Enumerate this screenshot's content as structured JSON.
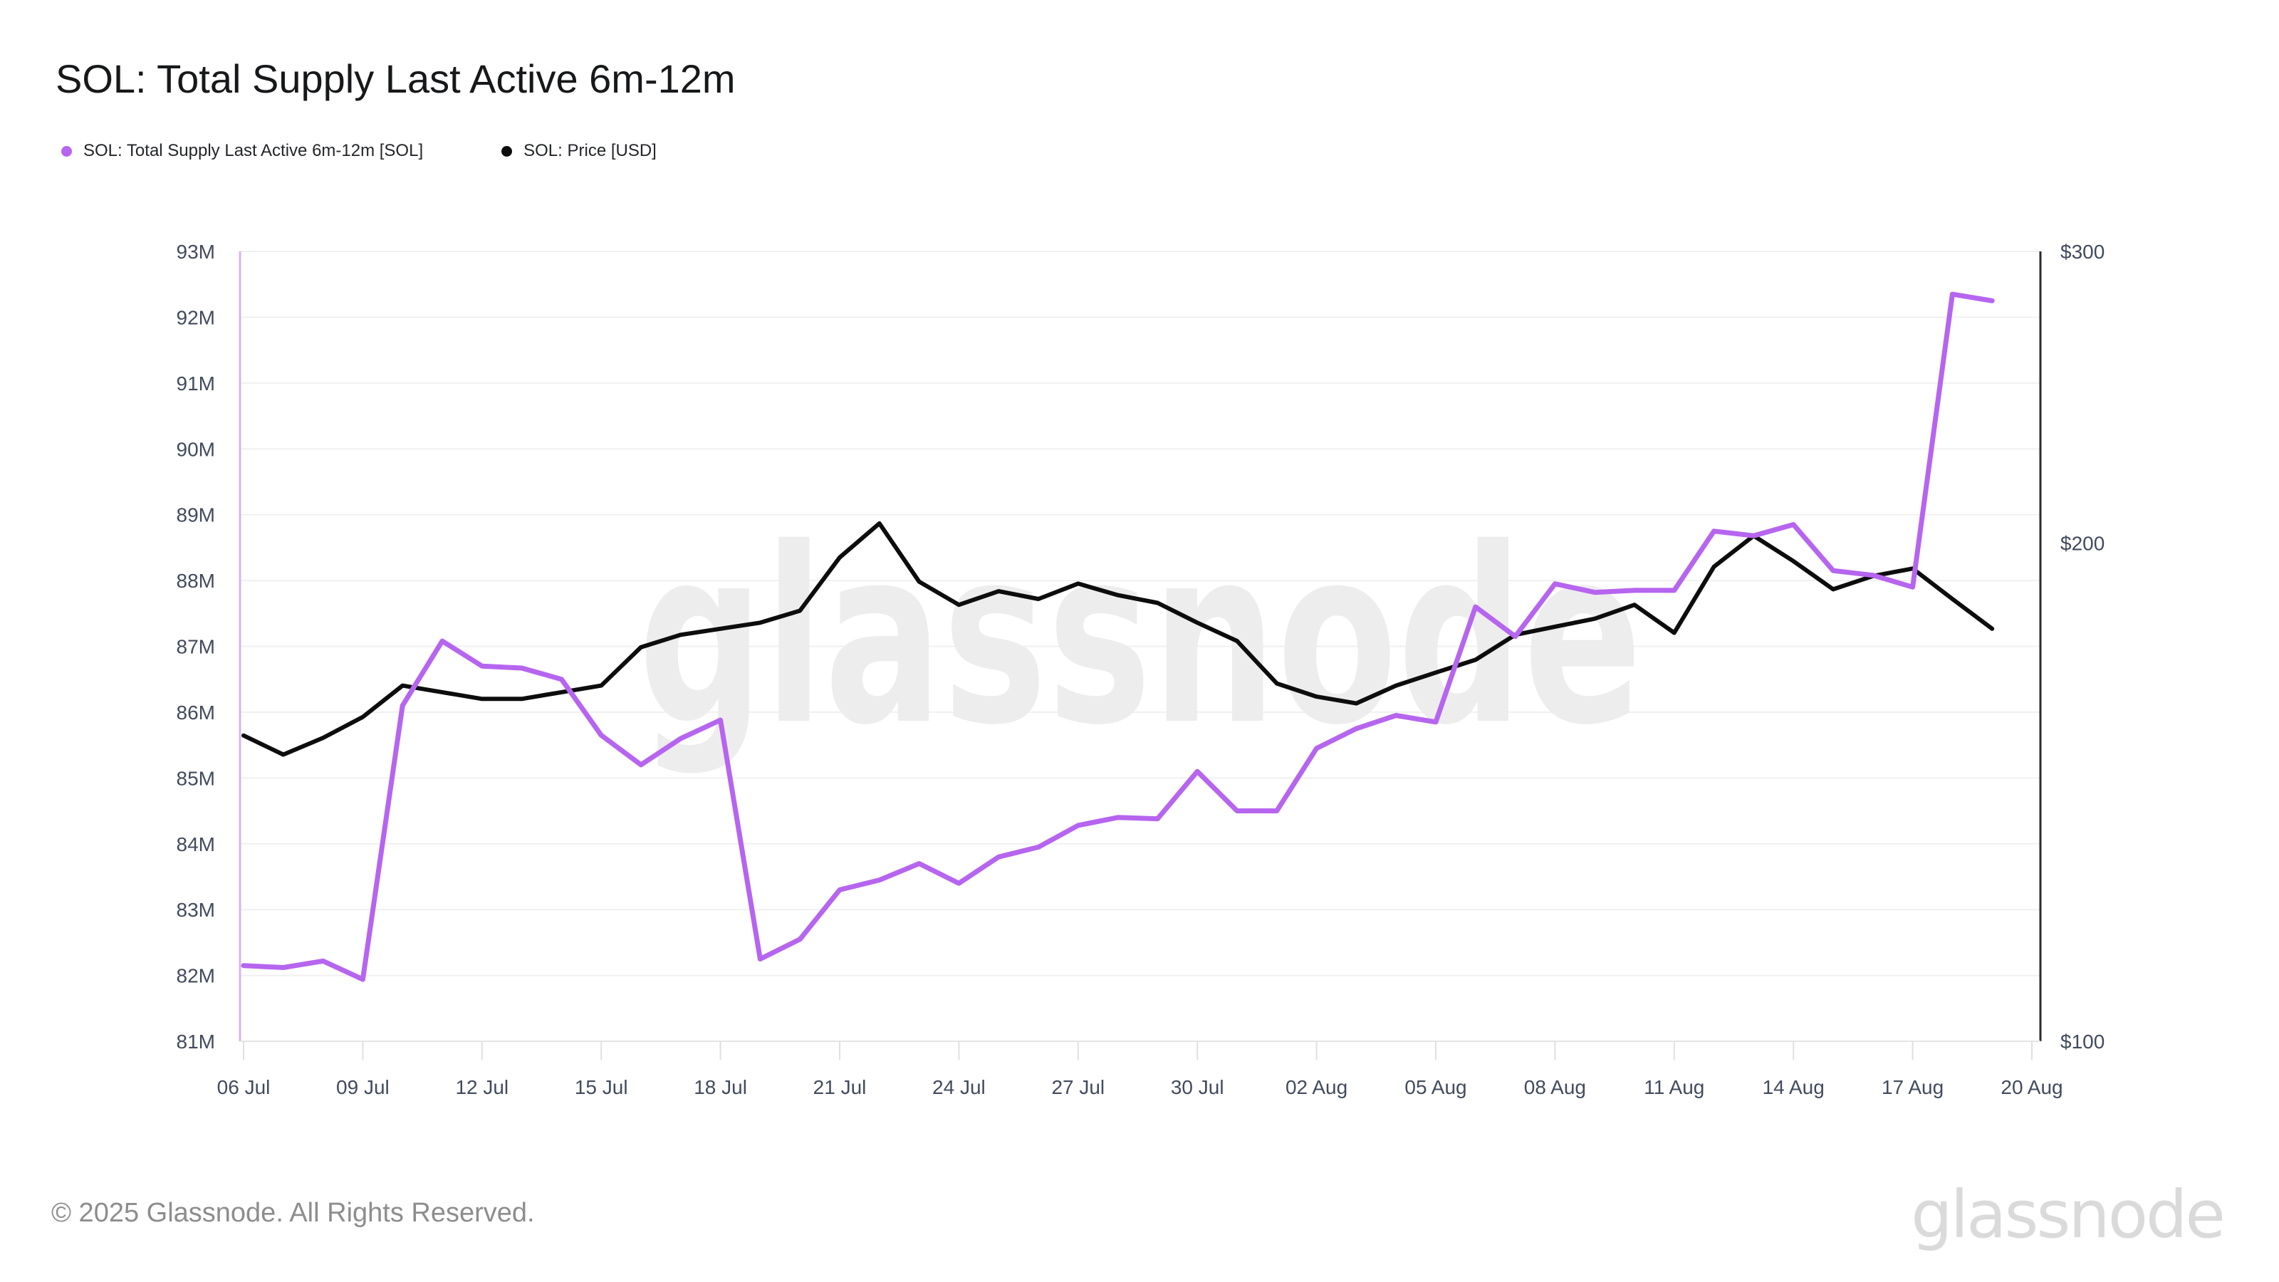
{
  "header": {
    "title": "SOL: Total Supply Last Active 6m-12m"
  },
  "legend": [
    {
      "label": "SOL: Total Supply Last Active 6m-12m [SOL]",
      "color": "#b665ef"
    },
    {
      "label": "SOL: Price [USD]",
      "color": "#0d0d0d"
    }
  ],
  "watermark": "glassnode",
  "footer": {
    "copyright": "© 2025 Glassnode. All Rights Reserved.",
    "brand": "glassnode"
  },
  "colors": {
    "supply_line": "#b665ef",
    "price_line": "#0d0d0d",
    "left_axis_line": "#d9b3f2",
    "right_axis_line": "#2b2b2b",
    "bottom_axis_line": "#e4e4e4",
    "gridline": "#f0f0f0",
    "tick": "#e0e0e0",
    "axis_text": "#414b5c",
    "watermark": "#ededed"
  },
  "chart_data": {
    "type": "line",
    "title": "SOL: Total Supply Last Active 6m-12m",
    "grid": "horizontal",
    "legend_position": "top-left",
    "x": [
      "06 Jul",
      "07 Jul",
      "08 Jul",
      "09 Jul",
      "10 Jul",
      "11 Jul",
      "12 Jul",
      "13 Jul",
      "14 Jul",
      "15 Jul",
      "16 Jul",
      "17 Jul",
      "18 Jul",
      "19 Jul",
      "20 Jul",
      "21 Jul",
      "22 Jul",
      "23 Jul",
      "24 Jul",
      "25 Jul",
      "26 Jul",
      "27 Jul",
      "28 Jul",
      "29 Jul",
      "30 Jul",
      "31 Jul",
      "01 Aug",
      "02 Aug",
      "03 Aug",
      "04 Aug",
      "05 Aug",
      "06 Aug",
      "07 Aug",
      "08 Aug",
      "09 Aug",
      "10 Aug",
      "11 Aug",
      "12 Aug",
      "13 Aug",
      "14 Aug",
      "15 Aug",
      "16 Aug",
      "17 Aug",
      "18 Aug",
      "19 Aug"
    ],
    "x_tick_labels": [
      "06 Jul",
      "09 Jul",
      "12 Jul",
      "15 Jul",
      "18 Jul",
      "21 Jul",
      "24 Jul",
      "27 Jul",
      "30 Jul",
      "02 Aug",
      "05 Aug",
      "08 Aug",
      "11 Aug",
      "14 Aug",
      "17 Aug",
      "20 Aug"
    ],
    "series": [
      {
        "name": "SOL: Total Supply Last Active 6m-12m [SOL]",
        "axis": "left",
        "unit": "M SOL",
        "color": "#b665ef",
        "values": [
          82.15,
          82.12,
          82.22,
          81.94,
          86.1,
          87.08,
          86.7,
          86.67,
          86.5,
          85.65,
          85.2,
          85.6,
          85.88,
          82.25,
          82.55,
          83.3,
          83.45,
          83.7,
          83.4,
          83.8,
          83.95,
          84.28,
          84.4,
          84.38,
          85.1,
          84.5,
          84.5,
          85.45,
          85.75,
          85.95,
          85.85,
          87.6,
          87.15,
          87.95,
          87.82,
          87.85,
          87.85,
          88.75,
          88.68,
          88.85,
          88.15,
          88.08,
          87.9,
          92.35,
          92.25
        ]
      },
      {
        "name": "SOL: Price [USD]",
        "axis": "right",
        "unit": "USD",
        "color": "#0d0d0d",
        "values": [
          153,
          149,
          152.5,
          157,
          164,
          162.5,
          161,
          161,
          162.5,
          164,
          173,
          176,
          177.5,
          179,
          182,
          196,
          205.5,
          189.5,
          183.5,
          187,
          185,
          189,
          186,
          184,
          179,
          174.5,
          164.5,
          161.5,
          160,
          164,
          167,
          170,
          176,
          178,
          180,
          183.5,
          176.5,
          193.5,
          202,
          195,
          187.5,
          191,
          193,
          185,
          177.5
        ]
      }
    ],
    "left_axis": {
      "scale": "linear",
      "min": 81,
      "max": 93,
      "tick_step": 1,
      "tick_labels": [
        "93M",
        "92M",
        "91M",
        "90M",
        "89M",
        "88M",
        "87M",
        "86M",
        "85M",
        "84M",
        "83M",
        "82M",
        "81M"
      ]
    },
    "right_axis": {
      "scale": "log",
      "min": 100,
      "max": 300,
      "tick_labels": [
        "$300",
        "$200",
        "$100"
      ],
      "tick_values": [
        300,
        200,
        100
      ]
    }
  }
}
